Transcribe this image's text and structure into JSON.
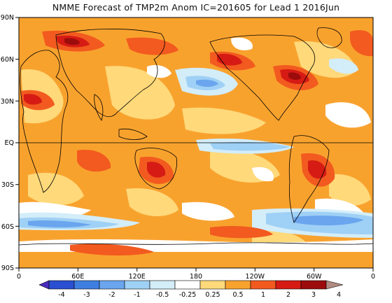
{
  "title": "NMME Forecast of TMP2m Anom IC=201605 for Lead 1 2016Jun",
  "lat_labels": [
    "90N",
    "60N",
    "30N",
    "EQ",
    "30S",
    "60S",
    "90S"
  ],
  "lon_labels": [
    "0",
    "60E",
    "120E",
    "180",
    "120W",
    "60W",
    "0"
  ],
  "colorbar": {
    "labels": [
      "-4",
      "-3",
      "-2",
      "-1",
      "-0.5",
      "-0.25",
      "0.25",
      "0.5",
      "1",
      "2",
      "3",
      "4"
    ],
    "colors": [
      "#4b2bbf",
      "#2a4fd1",
      "#3e7ee0",
      "#6aa5ee",
      "#9fd0f5",
      "#d3edf9",
      "#ffffff",
      "#ffd97a",
      "#f8a22e",
      "#f25a1f",
      "#d61b14",
      "#9c0c0c",
      "#b08a80"
    ]
  },
  "palette": {
    "warm_light": "#ffd97a",
    "warm": "#f8a22e",
    "warm_strong": "#f25a1f",
    "warm_extreme": "#d61b14",
    "warm_max": "#9c0c0c",
    "cool_light": "#d3edf9",
    "cool": "#9fd0f5",
    "cool_mid": "#6aa5ee",
    "cool_strong": "#3e7ee0"
  }
}
